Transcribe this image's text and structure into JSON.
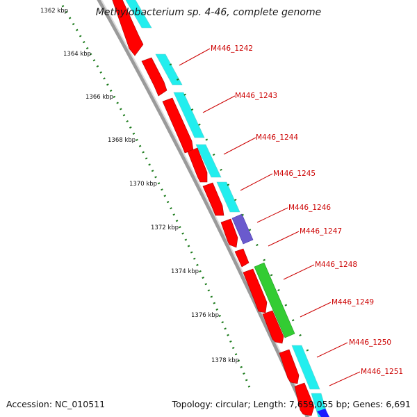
{
  "title": "Methylobacterium sp. 4-46, complete genome",
  "footer": {
    "accession": "Accession: NC_010511",
    "summary": "Topology: circular; Length: 7,659,055 bp; Genes: 6,691"
  },
  "ticks": [
    "1362 kbp",
    "1364 kbp",
    "1366 kbp",
    "1368 kbp",
    "1370 kbp",
    "1372 kbp",
    "1374 kbp",
    "1376 kbp",
    "1378 kbp"
  ],
  "genes": [
    "M446_1242",
    "M446_1243",
    "M446_1244",
    "M446_1245",
    "M446_1246",
    "M446_1247",
    "M446_1248",
    "M446_1249",
    "M446_1250",
    "M446_1251"
  ],
  "colors": {
    "cds_red": "#ff0000",
    "cyan": "#22eeee",
    "purple": "#6a5acd",
    "green": "#33cc33",
    "blue": "#1a1aff",
    "label_red": "#cc0000",
    "tick_green": "#1a7a1a",
    "backbone": "#888888"
  }
}
